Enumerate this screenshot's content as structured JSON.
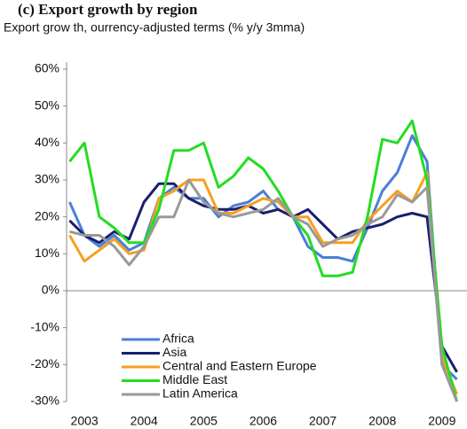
{
  "chart_data": {
    "type": "line",
    "title": "(c) Export growth by region",
    "subtitle": "Export grow th, ourrency-adjusted terms (% y/y 3mma)",
    "x": [
      2002.75,
      2003,
      2003.25,
      2003.5,
      2003.75,
      2004,
      2004.25,
      2004.5,
      2004.75,
      2005,
      2005.25,
      2005.5,
      2005.75,
      2006,
      2006.25,
      2006.5,
      2006.75,
      2007,
      2007.25,
      2007.5,
      2007.75,
      2008,
      2008.25,
      2008.5,
      2008.75,
      2009,
      2009.25
    ],
    "series": [
      {
        "name": "Africa",
        "color": "#4a7fd8",
        "values": [
          24,
          15,
          12,
          15,
          11,
          13,
          25,
          28,
          25,
          25,
          20,
          23,
          24,
          27,
          22,
          20,
          12,
          9,
          9,
          8,
          17,
          27,
          32,
          42,
          35,
          -20,
          -24
        ]
      },
      {
        "name": "Asia",
        "color": "#1a1f6e",
        "values": [
          19,
          15,
          13,
          16,
          14,
          24,
          29,
          29,
          25,
          23,
          22,
          22,
          23,
          21,
          22,
          20,
          22,
          18,
          14,
          16,
          17,
          18,
          20,
          21,
          20,
          -15,
          -22
        ]
      },
      {
        "name": "Central and Eastern Europe",
        "color": "#f5a020",
        "values": [
          15,
          8,
          11,
          14,
          10,
          11,
          25,
          27,
          30,
          30,
          21,
          21,
          23,
          25,
          24,
          20,
          20,
          13,
          13,
          13,
          19,
          23,
          27,
          24,
          32,
          -18,
          -28
        ]
      },
      {
        "name": "Middle East",
        "color": "#22dd22",
        "values": [
          35,
          40,
          20,
          17,
          13,
          13,
          22,
          38,
          38,
          40,
          28,
          31,
          36,
          33,
          27,
          20,
          15,
          4,
          4,
          5,
          20,
          41,
          40,
          46,
          30,
          -15,
          -30
        ]
      },
      {
        "name": "Latin America",
        "color": "#999999",
        "values": [
          16,
          15,
          15,
          12,
          7,
          12,
          20,
          20,
          30,
          24,
          21,
          20,
          21,
          22,
          25,
          20,
          18,
          12,
          14,
          15,
          18,
          20,
          26,
          24,
          28,
          -20,
          -30
        ]
      }
    ],
    "xlim": [
      2002.7,
      2009.42
    ],
    "xticks": [
      2003,
      2004,
      2005,
      2006,
      2007,
      2008,
      2009
    ],
    "ylim": [
      -30,
      60
    ],
    "yticks": [
      {
        "value": 60,
        "label": "60%"
      },
      {
        "value": 50,
        "label": "50%"
      },
      {
        "value": 40,
        "label": "40%"
      },
      {
        "value": 30,
        "label": "30%"
      },
      {
        "value": 20,
        "label": "20%"
      },
      {
        "value": 10,
        "label": "10%"
      },
      {
        "value": 0,
        "label": "0%"
      },
      {
        "value": -10,
        "label": "-10%"
      },
      {
        "value": -20,
        "label": "-20%"
      },
      {
        "value": -30,
        "label": "-30%"
      }
    ],
    "legend": "lower left"
  }
}
